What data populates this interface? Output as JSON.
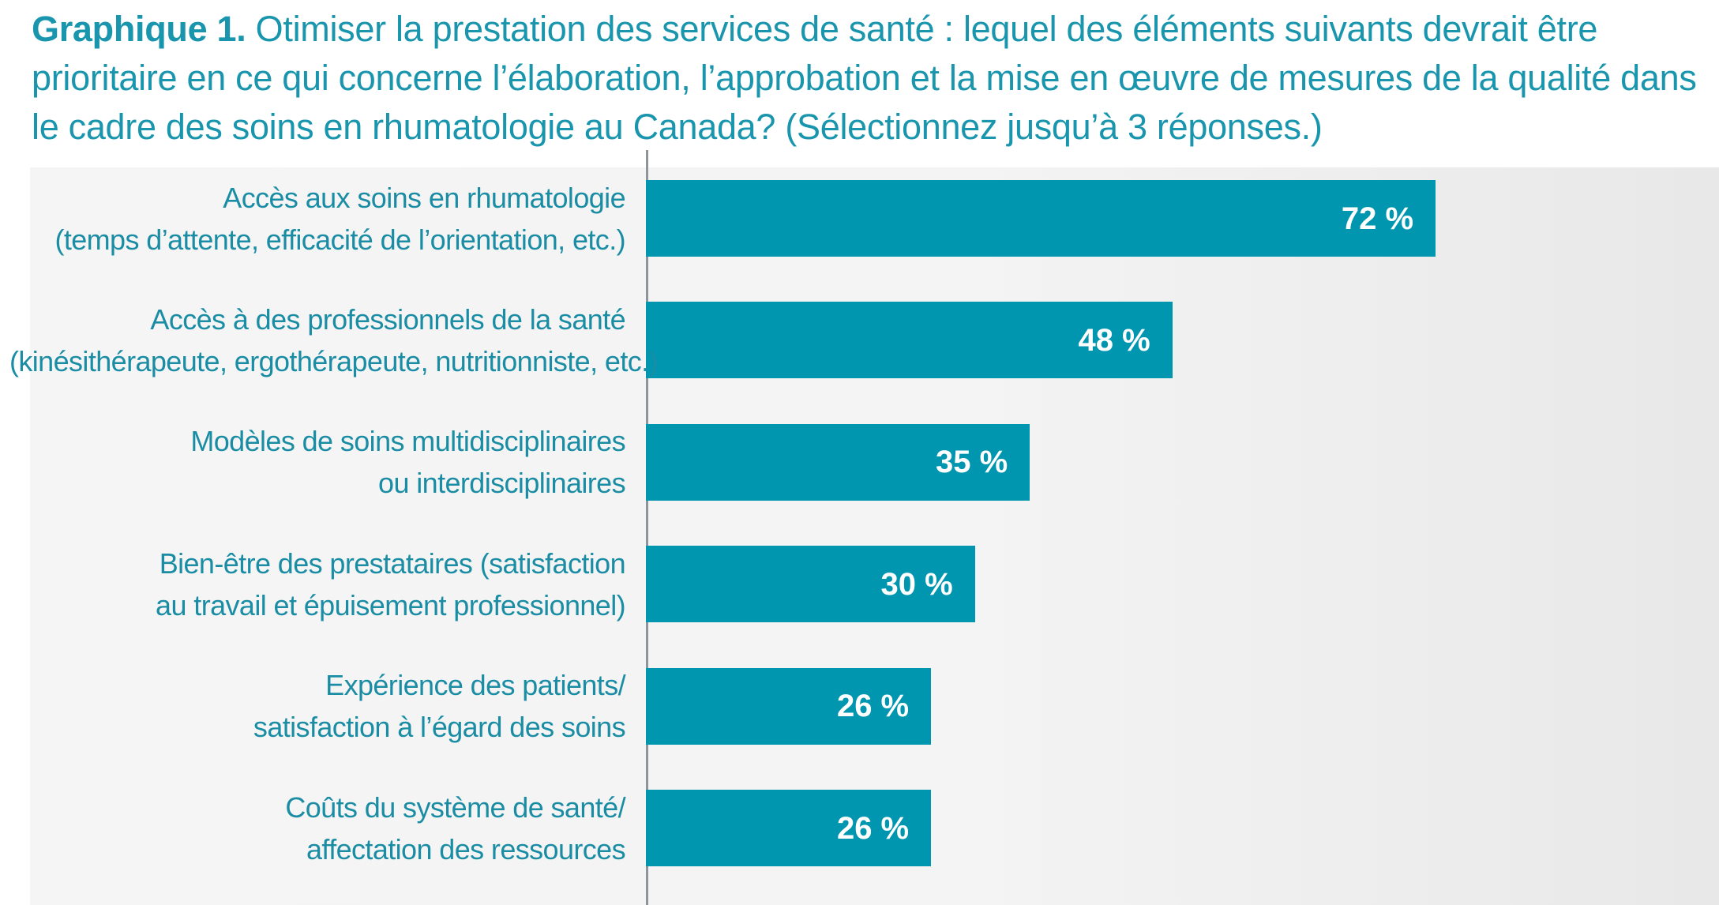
{
  "title": {
    "lead": "Graphique 1.",
    "text": "Otimiser la prestation des services de santé : lequel des éléments suivants devrait être prioritaire en ce qui concerne l’élaboration, l’approbation et la mise en œuvre de mesures de la qualité dans le cadre des soins en rhumatologie au Canada? (Sélectionnez jusqu’à 3 réponses.)"
  },
  "chart_data": {
    "type": "bar",
    "orientation": "horizontal",
    "title": "Graphique 1. Otimiser la prestation des services de santé : lequel des éléments suivants devrait être prioritaire en ce qui concerne l’élaboration, l’approbation et la mise en œuvre de mesures de la qualité dans le cadre des soins en rhumatologie au Canada? (Sélectionnez jusqu’à 3 réponses.)",
    "categories": [
      [
        "Accès aux soins en rhumatologie",
        "(temps d’attente, efficacité de l’orientation, etc.)"
      ],
      [
        "Accès à des professionnels de la santé",
        "(kinésithérapeute, ergothérapeute, nutritionniste, etc.)"
      ],
      [
        "Modèles de soins multidisciplinaires",
        "ou interdisciplinaires"
      ],
      [
        "Bien-être des prestataires (satisfaction",
        "au travail et épuisement professionnel)"
      ],
      [
        "Expérience des patients/",
        "satisfaction à l’égard des soins"
      ],
      [
        "Coûts du système de santé/",
        "affectation des ressources"
      ]
    ],
    "values": [
      72,
      48,
      35,
      30,
      26,
      26
    ],
    "value_labels": [
      "72 %",
      "48 %",
      "35 %",
      "30 %",
      "26 %",
      "26 %"
    ],
    "unit": "%",
    "xlim": [
      0,
      100
    ],
    "xlabel": "",
    "ylabel": "",
    "grid": false,
    "legend": "none",
    "colors": {
      "bar": "#0096b0",
      "label_text": "#1a8da5",
      "value_text": "#ffffff",
      "title_text": "#1996ad",
      "axis": "#8d959c",
      "background": "#f4f4f4"
    }
  }
}
